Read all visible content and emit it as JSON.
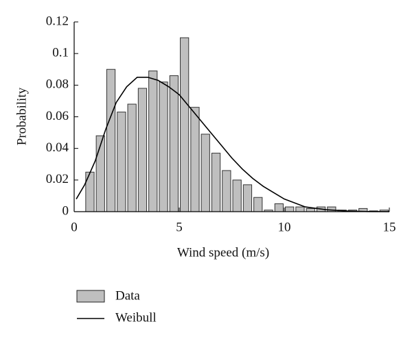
{
  "chart_data": {
    "type": "histogram",
    "xlabel": "Wind speed (m/s)",
    "ylabel": "Probability",
    "bins": [
      0.5,
      1,
      1.5,
      2,
      2.5,
      3,
      3.5,
      4,
      4.5,
      5,
      5.5,
      6,
      6.5,
      7,
      7.5,
      8,
      8.5,
      9,
      9.5,
      10,
      10.5,
      11,
      11.5,
      12,
      12.5,
      13,
      13.5,
      14,
      14.5,
      15
    ],
    "values": [
      0.025,
      0.048,
      0.09,
      0.063,
      0.068,
      0.078,
      0.089,
      0.082,
      0.086,
      0.11,
      0.066,
      0.049,
      0.037,
      0.026,
      0.02,
      0.017,
      0.009,
      0.001,
      0.005,
      0.003,
      0.003,
      0.002,
      0.003,
      0.003,
      0.001,
      0.001,
      0.002,
      0.0005,
      0.001
    ],
    "name": "Data",
    "color": "#bfbfbf",
    "curve": {
      "name": "Weibull",
      "color": "#000000",
      "x": [
        0.1,
        0.5,
        1,
        1.5,
        2,
        2.5,
        3,
        3.5,
        4,
        4.5,
        5,
        5.5,
        6,
        6.5,
        7,
        7.5,
        8,
        8.5,
        9,
        9.5,
        10,
        11,
        12,
        13,
        14,
        15
      ],
      "values": [
        0.008,
        0.017,
        0.032,
        0.052,
        0.069,
        0.079,
        0.085,
        0.085,
        0.083,
        0.079,
        0.074,
        0.066,
        0.058,
        0.05,
        0.042,
        0.034,
        0.027,
        0.021,
        0.016,
        0.012,
        0.008,
        0.003,
        0.0012,
        0.0004,
        0.0001,
        0
      ]
    },
    "xlim": [
      0,
      15
    ],
    "ylim": [
      0,
      0.12
    ],
    "xticks": [
      0,
      5,
      10,
      15
    ],
    "yticks": [
      0,
      0.02,
      0.04,
      0.06,
      0.08,
      0.1,
      0.12
    ]
  }
}
